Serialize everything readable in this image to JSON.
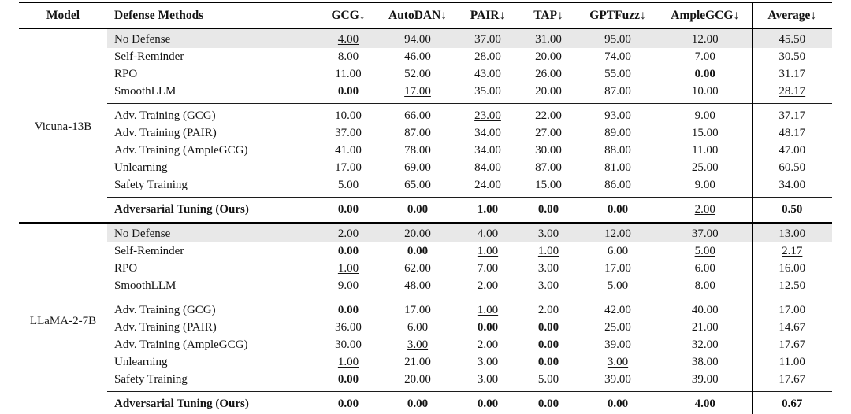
{
  "colors": {
    "row_shade": "#e8e8e8",
    "rule": "#000000",
    "text": "#141414"
  },
  "table": {
    "columns": [
      "Model",
      "Defense Methods",
      "GCG↓",
      "AutoDAN↓",
      "PAIR↓",
      "TAP↓",
      "GPTFuzz↓",
      "AmpleGCG↓",
      "Average↓"
    ],
    "sections": [
      {
        "model": "Vicuna-13B",
        "groups": [
          {
            "rows": [
              {
                "method": "No Defense",
                "shaded": true,
                "values": [
                  {
                    "v": "4.00",
                    "em": "u"
                  },
                  {
                    "v": "94.00"
                  },
                  {
                    "v": "37.00"
                  },
                  {
                    "v": "31.00"
                  },
                  {
                    "v": "95.00"
                  },
                  {
                    "v": "12.00"
                  },
                  {
                    "v": "45.50"
                  }
                ]
              },
              {
                "method": "Self-Reminder",
                "values": [
                  {
                    "v": "8.00"
                  },
                  {
                    "v": "46.00"
                  },
                  {
                    "v": "28.00"
                  },
                  {
                    "v": "20.00"
                  },
                  {
                    "v": "74.00"
                  },
                  {
                    "v": "7.00"
                  },
                  {
                    "v": "30.50"
                  }
                ]
              },
              {
                "method": "RPO",
                "values": [
                  {
                    "v": "11.00"
                  },
                  {
                    "v": "52.00"
                  },
                  {
                    "v": "43.00"
                  },
                  {
                    "v": "26.00"
                  },
                  {
                    "v": "55.00",
                    "em": "u"
                  },
                  {
                    "v": "0.00",
                    "em": "b"
                  },
                  {
                    "v": "31.17"
                  }
                ]
              },
              {
                "method": "SmoothLLM",
                "values": [
                  {
                    "v": "0.00",
                    "em": "b"
                  },
                  {
                    "v": "17.00",
                    "em": "u"
                  },
                  {
                    "v": "35.00"
                  },
                  {
                    "v": "20.00"
                  },
                  {
                    "v": "87.00"
                  },
                  {
                    "v": "10.00"
                  },
                  {
                    "v": "28.17",
                    "em": "u"
                  }
                ]
              }
            ]
          },
          {
            "rows": [
              {
                "method": "Adv. Training (GCG)",
                "values": [
                  {
                    "v": "10.00"
                  },
                  {
                    "v": "66.00"
                  },
                  {
                    "v": "23.00",
                    "em": "u"
                  },
                  {
                    "v": "22.00"
                  },
                  {
                    "v": "93.00"
                  },
                  {
                    "v": "9.00"
                  },
                  {
                    "v": "37.17"
                  }
                ]
              },
              {
                "method": "Adv. Training (PAIR)",
                "values": [
                  {
                    "v": "37.00"
                  },
                  {
                    "v": "87.00"
                  },
                  {
                    "v": "34.00"
                  },
                  {
                    "v": "27.00"
                  },
                  {
                    "v": "89.00"
                  },
                  {
                    "v": "15.00"
                  },
                  {
                    "v": "48.17"
                  }
                ]
              },
              {
                "method": "Adv. Training (AmpleGCG)",
                "values": [
                  {
                    "v": "41.00"
                  },
                  {
                    "v": "78.00"
                  },
                  {
                    "v": "34.00"
                  },
                  {
                    "v": "30.00"
                  },
                  {
                    "v": "88.00"
                  },
                  {
                    "v": "11.00"
                  },
                  {
                    "v": "47.00"
                  }
                ]
              },
              {
                "method": "Unlearning",
                "values": [
                  {
                    "v": "17.00"
                  },
                  {
                    "v": "69.00"
                  },
                  {
                    "v": "84.00"
                  },
                  {
                    "v": "87.00"
                  },
                  {
                    "v": "81.00"
                  },
                  {
                    "v": "25.00"
                  },
                  {
                    "v": "60.50"
                  }
                ]
              },
              {
                "method": "Safety Training",
                "values": [
                  {
                    "v": "5.00"
                  },
                  {
                    "v": "65.00"
                  },
                  {
                    "v": "24.00"
                  },
                  {
                    "v": "15.00",
                    "em": "u"
                  },
                  {
                    "v": "86.00"
                  },
                  {
                    "v": "9.00"
                  },
                  {
                    "v": "34.00"
                  }
                ]
              }
            ]
          },
          {
            "ours": true,
            "rows": [
              {
                "method": "Adversarial Tuning (Ours)",
                "bold": true,
                "values": [
                  {
                    "v": "0.00",
                    "em": "b"
                  },
                  {
                    "v": "0.00",
                    "em": "b"
                  },
                  {
                    "v": "1.00",
                    "em": "b"
                  },
                  {
                    "v": "0.00",
                    "em": "b"
                  },
                  {
                    "v": "0.00",
                    "em": "b"
                  },
                  {
                    "v": "2.00",
                    "em": "u"
                  },
                  {
                    "v": "0.50",
                    "em": "b"
                  }
                ]
              }
            ]
          }
        ]
      },
      {
        "model": "LLaMA-2-7B",
        "groups": [
          {
            "rows": [
              {
                "method": "No Defense",
                "shaded": true,
                "values": [
                  {
                    "v": "2.00"
                  },
                  {
                    "v": "20.00"
                  },
                  {
                    "v": "4.00"
                  },
                  {
                    "v": "3.00"
                  },
                  {
                    "v": "12.00"
                  },
                  {
                    "v": "37.00"
                  },
                  {
                    "v": "13.00"
                  }
                ]
              },
              {
                "method": "Self-Reminder",
                "values": [
                  {
                    "v": "0.00",
                    "em": "b"
                  },
                  {
                    "v": "0.00",
                    "em": "b"
                  },
                  {
                    "v": "1.00",
                    "em": "u"
                  },
                  {
                    "v": "1.00",
                    "em": "u"
                  },
                  {
                    "v": "6.00"
                  },
                  {
                    "v": "5.00",
                    "em": "u"
                  },
                  {
                    "v": "2.17",
                    "em": "u"
                  }
                ]
              },
              {
                "method": "RPO",
                "values": [
                  {
                    "v": "1.00",
                    "em": "u"
                  },
                  {
                    "v": "62.00"
                  },
                  {
                    "v": "7.00"
                  },
                  {
                    "v": "3.00"
                  },
                  {
                    "v": "17.00"
                  },
                  {
                    "v": "6.00"
                  },
                  {
                    "v": "16.00"
                  }
                ]
              },
              {
                "method": "SmoothLLM",
                "values": [
                  {
                    "v": "9.00"
                  },
                  {
                    "v": "48.00"
                  },
                  {
                    "v": "2.00"
                  },
                  {
                    "v": "3.00"
                  },
                  {
                    "v": "5.00"
                  },
                  {
                    "v": "8.00"
                  },
                  {
                    "v": "12.50"
                  }
                ]
              }
            ]
          },
          {
            "rows": [
              {
                "method": "Adv. Training (GCG)",
                "values": [
                  {
                    "v": "0.00",
                    "em": "b"
                  },
                  {
                    "v": "17.00"
                  },
                  {
                    "v": "1.00",
                    "em": "u"
                  },
                  {
                    "v": "2.00"
                  },
                  {
                    "v": "42.00"
                  },
                  {
                    "v": "40.00"
                  },
                  {
                    "v": "17.00"
                  }
                ]
              },
              {
                "method": "Adv. Training (PAIR)",
                "values": [
                  {
                    "v": "36.00"
                  },
                  {
                    "v": "6.00"
                  },
                  {
                    "v": "0.00",
                    "em": "b"
                  },
                  {
                    "v": "0.00",
                    "em": "b"
                  },
                  {
                    "v": "25.00"
                  },
                  {
                    "v": "21.00"
                  },
                  {
                    "v": "14.67"
                  }
                ]
              },
              {
                "method": "Adv. Training (AmpleGCG)",
                "values": [
                  {
                    "v": "30.00"
                  },
                  {
                    "v": "3.00",
                    "em": "u"
                  },
                  {
                    "v": "2.00"
                  },
                  {
                    "v": "0.00",
                    "em": "b"
                  },
                  {
                    "v": "39.00"
                  },
                  {
                    "v": "32.00"
                  },
                  {
                    "v": "17.67"
                  }
                ]
              },
              {
                "method": "Unlearning",
                "values": [
                  {
                    "v": "1.00",
                    "em": "u"
                  },
                  {
                    "v": "21.00"
                  },
                  {
                    "v": "3.00"
                  },
                  {
                    "v": "0.00",
                    "em": "b"
                  },
                  {
                    "v": "3.00",
                    "em": "u"
                  },
                  {
                    "v": "38.00"
                  },
                  {
                    "v": "11.00"
                  }
                ]
              },
              {
                "method": "Safety Training",
                "values": [
                  {
                    "v": "0.00",
                    "em": "b"
                  },
                  {
                    "v": "20.00"
                  },
                  {
                    "v": "3.00"
                  },
                  {
                    "v": "5.00"
                  },
                  {
                    "v": "39.00"
                  },
                  {
                    "v": "39.00"
                  },
                  {
                    "v": "17.67"
                  }
                ]
              }
            ]
          },
          {
            "ours": true,
            "rows": [
              {
                "method": "Adversarial Tuning (Ours)",
                "bold": true,
                "values": [
                  {
                    "v": "0.00",
                    "em": "b"
                  },
                  {
                    "v": "0.00",
                    "em": "b"
                  },
                  {
                    "v": "0.00",
                    "em": "b"
                  },
                  {
                    "v": "0.00",
                    "em": "b"
                  },
                  {
                    "v": "0.00",
                    "em": "b"
                  },
                  {
                    "v": "4.00",
                    "em": "b"
                  },
                  {
                    "v": "0.67",
                    "em": "b"
                  }
                ]
              }
            ]
          }
        ]
      }
    ]
  }
}
